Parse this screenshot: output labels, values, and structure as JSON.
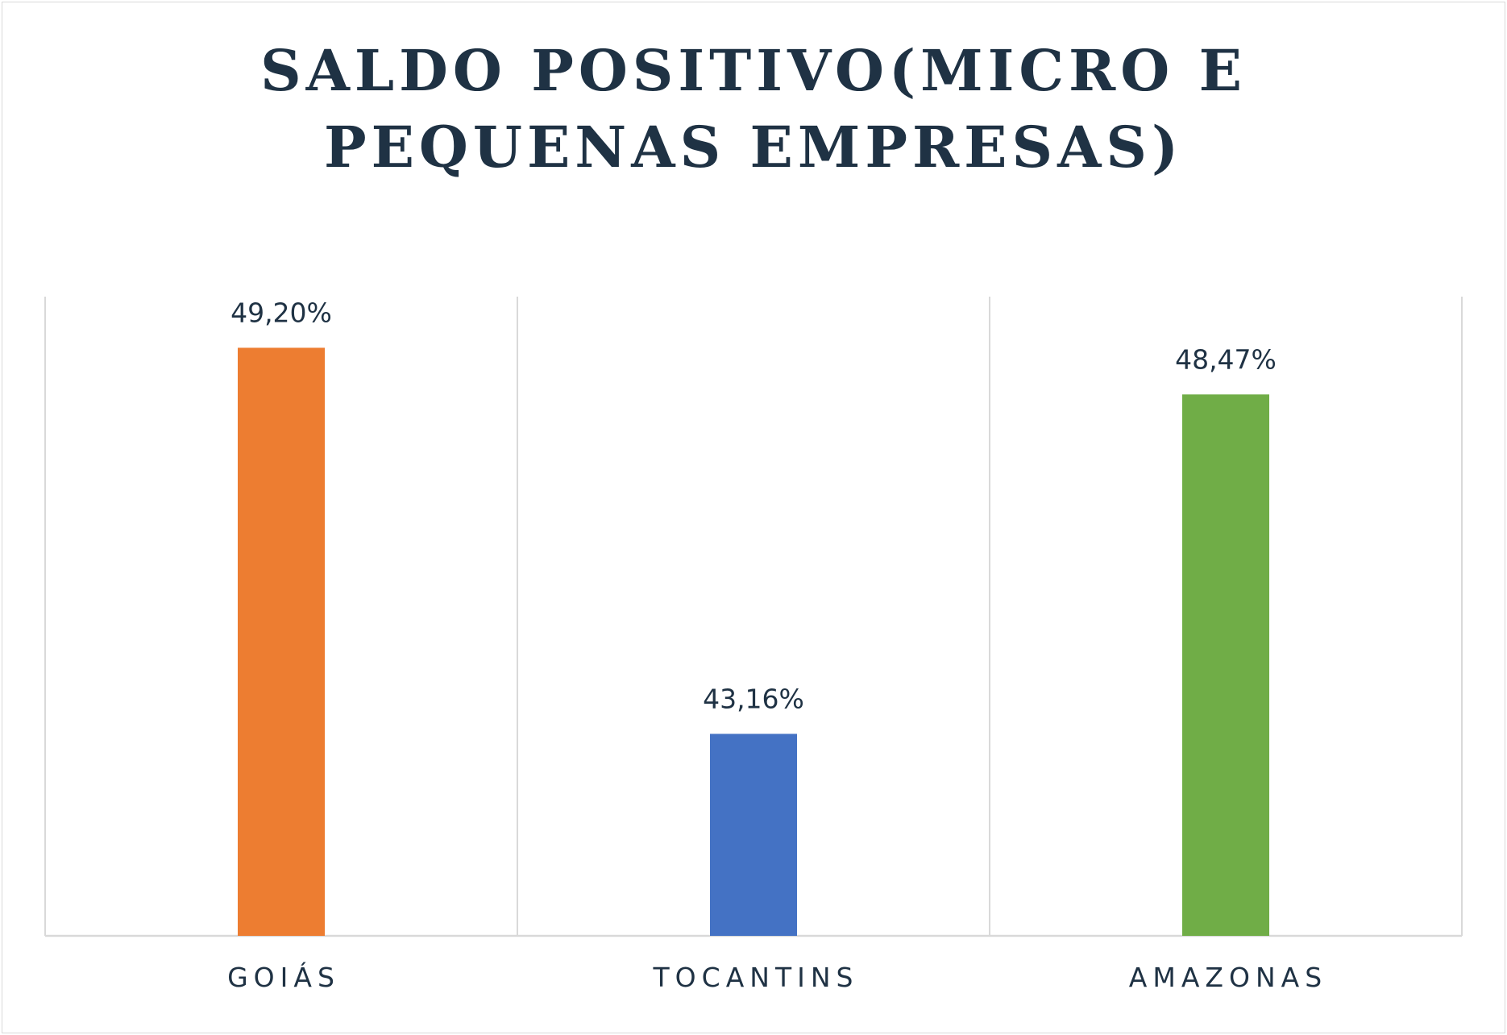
{
  "chart_data": {
    "type": "bar",
    "title_lines": [
      "SALDO POSITIVO(MICRO E",
      "PEQUENAS EMPRESAS)"
    ],
    "categories": [
      "GOIÁS",
      "TOCANTINS",
      "AMAZONAS"
    ],
    "values": [
      49.2,
      43.16,
      48.47
    ],
    "value_labels": [
      "49,20%",
      "43,16%",
      "48,47%"
    ],
    "colors": [
      "#ED7D31",
      "#4472C4",
      "#70AD47"
    ],
    "ylim": [
      40,
      50
    ],
    "gridlines": true,
    "axis_color": "#d9d9d9"
  }
}
